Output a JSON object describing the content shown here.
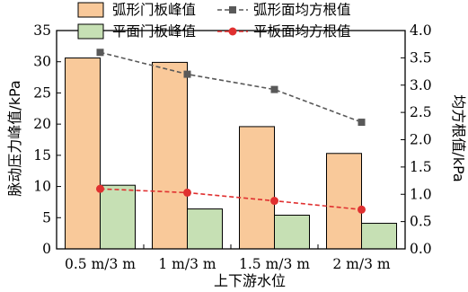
{
  "chart_data": {
    "type": "bar",
    "categories": [
      "0.5 m/3 m",
      "1 m/3 m",
      "1.5 m/3 m",
      "2 m/3 m"
    ],
    "xlabel": "上下游水位",
    "ylabel": "脉动压力峰值/kPa",
    "y2label": "均方根值/kPa",
    "ylim": [
      0,
      35
    ],
    "yticks": [
      0,
      5,
      10,
      15,
      20,
      25,
      30,
      35
    ],
    "y2lim": [
      0,
      4.0
    ],
    "y2ticks": [
      "0.0",
      "0.5",
      "1.0",
      "1.5",
      "2.0",
      "2.5",
      "3.0",
      "3.5",
      "4.0"
    ],
    "legend_position": "top",
    "series": [
      {
        "name": "弧形门板峰值",
        "kind": "bar",
        "axis": "left",
        "color": "#f9c99a",
        "values": [
          30.6,
          29.9,
          19.6,
          15.3
        ]
      },
      {
        "name": "平面门板峰值",
        "kind": "bar",
        "axis": "left",
        "color": "#c6e0b4",
        "values": [
          10.2,
          6.4,
          5.4,
          4.1
        ]
      },
      {
        "name": "弧形面均方根值",
        "kind": "line",
        "axis": "right",
        "color": "#595959",
        "marker": "square",
        "dash": true,
        "values": [
          3.6,
          3.2,
          2.92,
          2.32
        ]
      },
      {
        "name": "平板面均方根值",
        "kind": "line",
        "axis": "right",
        "color": "#e03030",
        "marker": "circle",
        "dash": true,
        "values": [
          1.1,
          1.03,
          0.88,
          0.72
        ]
      }
    ]
  }
}
